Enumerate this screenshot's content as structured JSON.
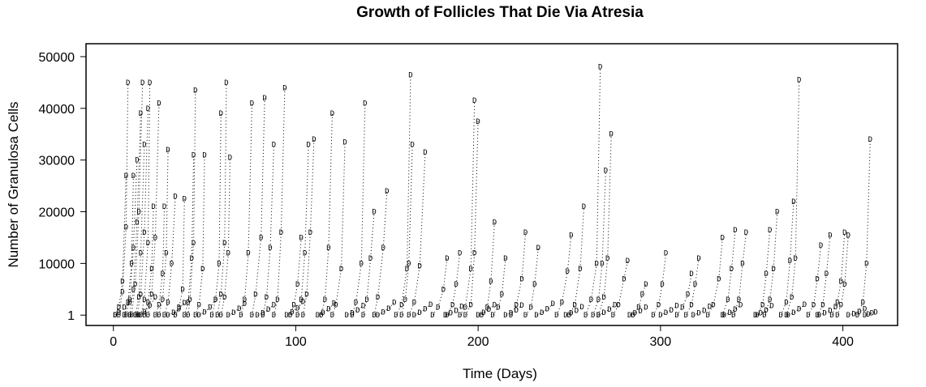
{
  "chart_data": {
    "type": "line",
    "title": "Growth of Follicles That Die Via Atresia",
    "xlabel": "Time (Days)",
    "ylabel": "Number of Granulosa Cells",
    "xlim": [
      -15,
      430
    ],
    "ylim": [
      -2000,
      52500
    ],
    "x_ticks": [
      0,
      100,
      200,
      300,
      400
    ],
    "y_ticks": [
      1,
      10000,
      20000,
      30000,
      40000,
      50000
    ],
    "y_tick_labels": [
      "1",
      "10000",
      "20000",
      "30000",
      "40000",
      "50000"
    ],
    "marker": "D",
    "grid": false,
    "legend": "none",
    "series": [
      {
        "x": [
          1,
          3,
          5,
          7
        ],
        "values": [
          1,
          1500,
          6500,
          27000
        ]
      },
      {
        "x": [
          3,
          5,
          7,
          8
        ],
        "values": [
          1,
          4500,
          17000,
          45000
        ]
      },
      {
        "x": [
          6,
          8,
          10,
          11
        ],
        "values": [
          1,
          2500,
          10000,
          27000
        ]
      },
      {
        "x": [
          7,
          9,
          11,
          13
        ],
        "values": [
          1,
          3000,
          13000,
          30000
        ]
      },
      {
        "x": [
          9,
          11,
          13,
          15
        ],
        "values": [
          1,
          5000,
          18000,
          39000
        ]
      },
      {
        "x": [
          10,
          12,
          14,
          16
        ],
        "values": [
          1,
          6000,
          20000,
          45000
        ]
      },
      {
        "x": [
          12,
          14,
          15,
          17
        ],
        "values": [
          1,
          3500,
          12000,
          33000
        ]
      },
      {
        "x": [
          13,
          15,
          17,
          19
        ],
        "values": [
          1,
          4000,
          16000,
          40000
        ]
      },
      {
        "x": [
          15,
          17,
          19,
          20
        ],
        "values": [
          1,
          3000,
          14000,
          45000
        ]
      },
      {
        "x": [
          17,
          19,
          21,
          22
        ],
        "values": [
          1,
          2500,
          9000,
          21000
        ]
      },
      {
        "x": [
          19,
          21,
          23,
          25
        ],
        "values": [
          1,
          4000,
          15000,
          41000
        ]
      },
      {
        "x": [
          23,
          25,
          27,
          28
        ],
        "values": [
          1,
          2000,
          8000,
          21000
        ]
      },
      {
        "x": [
          25,
          27,
          29,
          30
        ],
        "values": [
          1,
          3000,
          12000,
          32000
        ]
      },
      {
        "x": [
          28,
          30,
          32,
          34
        ],
        "values": [
          1,
          2500,
          10000,
          23000
        ]
      },
      {
        "x": [
          34,
          36,
          38,
          39
        ],
        "values": [
          1,
          1500,
          5000,
          22500
        ]
      },
      {
        "x": [
          39,
          41,
          43,
          44
        ],
        "values": [
          1,
          2500,
          11000,
          31000
        ]
      },
      {
        "x": [
          41,
          42,
          44,
          45
        ],
        "values": [
          1,
          3000,
          14000,
          43500
        ]
      },
      {
        "x": [
          45,
          47,
          49,
          50
        ],
        "values": [
          1,
          2000,
          9000,
          31000
        ]
      },
      {
        "x": [
          54,
          56,
          58,
          59
        ],
        "values": [
          1,
          3000,
          10000,
          39000
        ]
      },
      {
        "x": [
          57,
          59,
          61,
          62
        ],
        "values": [
          1,
          4000,
          14000,
          45000
        ]
      },
      {
        "x": [
          59,
          61,
          63,
          64
        ],
        "values": [
          1,
          3500,
          12000,
          30500
        ]
      },
      {
        "x": [
          70,
          72,
          74,
          76
        ],
        "values": [
          1,
          3000,
          12000,
          41000
        ]
      },
      {
        "x": [
          76,
          78,
          81,
          83
        ],
        "values": [
          1,
          4000,
          15000,
          42000
        ]
      },
      {
        "x": [
          82,
          84,
          86,
          88
        ],
        "values": [
          1,
          3500,
          13000,
          33000
        ]
      },
      {
        "x": [
          88,
          90,
          92,
          94
        ],
        "values": [
          1,
          3000,
          16000,
          44000
        ]
      },
      {
        "x": [
          97,
          99,
          101,
          103
        ],
        "values": [
          1,
          2000,
          6000,
          15000
        ]
      },
      {
        "x": [
          101,
          103,
          105,
          107
        ],
        "values": [
          1,
          3000,
          12000,
          33000
        ]
      },
      {
        "x": [
          104,
          106,
          108,
          110
        ],
        "values": [
          1,
          4000,
          16000,
          34000
        ]
      },
      {
        "x": [
          114,
          116,
          118,
          120
        ],
        "values": [
          1,
          3000,
          13000,
          39000
        ]
      },
      {
        "x": [
          120,
          122,
          125,
          127
        ],
        "values": [
          1,
          2000,
          9000,
          33500
        ]
      },
      {
        "x": [
          131,
          133,
          136,
          138
        ],
        "values": [
          1,
          2500,
          10000,
          41000
        ]
      },
      {
        "x": [
          137,
          139,
          141,
          143
        ],
        "values": [
          1,
          3000,
          11000,
          20000
        ]
      },
      {
        "x": [
          143,
          145,
          148,
          150
        ],
        "values": [
          1,
          3500,
          13000,
          24000
        ]
      },
      {
        "x": [
          155,
          158,
          161,
          163
        ],
        "values": [
          1,
          2000,
          9000,
          46500
        ]
      },
      {
        "x": [
          158,
          160,
          162,
          164
        ],
        "values": [
          1,
          3000,
          10000,
          33000
        ]
      },
      {
        "x": [
          162,
          165,
          168,
          171
        ],
        "values": [
          1,
          2500,
          9500,
          31500
        ]
      },
      {
        "x": [
          175,
          178,
          181,
          183
        ],
        "values": [
          1,
          1500,
          5000,
          11000
        ]
      },
      {
        "x": [
          183,
          186,
          188,
          190
        ],
        "values": [
          1,
          2000,
          6000,
          12000
        ]
      },
      {
        "x": [
          190,
          193,
          196,
          198
        ],
        "values": [
          1,
          1500,
          9000,
          41500
        ]
      },
      {
        "x": [
          193,
          196,
          198,
          200
        ],
        "values": [
          1,
          2000,
          12000,
          37500
        ]
      },
      {
        "x": [
          202,
          205,
          207,
          209
        ],
        "values": [
          1,
          1500,
          6500,
          18000
        ]
      },
      {
        "x": [
          208,
          211,
          213,
          215
        ],
        "values": [
          1,
          1500,
          4000,
          11000
        ]
      },
      {
        "x": [
          218,
          221,
          224,
          226
        ],
        "values": [
          1,
          2000,
          7000,
          16000
        ]
      },
      {
        "x": [
          226,
          229,
          231,
          233
        ],
        "values": [
          1,
          1500,
          6000,
          13000
        ]
      },
      {
        "x": [
          243,
          246,
          249,
          251
        ],
        "values": [
          1,
          2500,
          8500,
          15500
        ]
      },
      {
        "x": [
          250,
          253,
          256,
          258
        ],
        "values": [
          1,
          2000,
          9000,
          21000
        ]
      },
      {
        "x": [
          259,
          262,
          265,
          267
        ],
        "values": [
          1,
          3000,
          10000,
          48000
        ]
      },
      {
        "x": [
          263,
          266,
          268,
          270
        ],
        "values": [
          1,
          3000,
          10000,
          28000
        ]
      },
      {
        "x": [
          266,
          269,
          271,
          273
        ],
        "values": [
          1,
          3500,
          11000,
          35000
        ]
      },
      {
        "x": [
          274,
          277,
          280,
          282
        ],
        "values": [
          1,
          2000,
          7000,
          10500
        ]
      },
      {
        "x": [
          285,
          288,
          290,
          292
        ],
        "values": [
          1,
          1500,
          4000,
          6000
        ]
      },
      {
        "x": [
          296,
          299,
          301,
          303
        ],
        "values": [
          1,
          2000,
          6000,
          12000
        ]
      },
      {
        "x": [
          309,
          312,
          315,
          317
        ],
        "values": [
          1,
          1500,
          4000,
          8000
        ]
      },
      {
        "x": [
          314,
          317,
          319,
          321
        ],
        "values": [
          1,
          2000,
          6000,
          11000
        ]
      },
      {
        "x": [
          326,
          329,
          332,
          334
        ],
        "values": [
          1,
          2000,
          7000,
          15000
        ]
      },
      {
        "x": [
          334,
          337,
          339,
          341
        ],
        "values": [
          1,
          3000,
          9000,
          16500
        ]
      },
      {
        "x": [
          340,
          343,
          345,
          347
        ],
        "values": [
          1,
          3000,
          10000,
          16000
        ]
      },
      {
        "x": [
          353,
          356,
          358,
          360
        ],
        "values": [
          1,
          2000,
          8000,
          16500
        ]
      },
      {
        "x": [
          357,
          360,
          362,
          364
        ],
        "values": [
          1,
          3000,
          9000,
          20000
        ]
      },
      {
        "x": [
          366,
          369,
          371,
          373
        ],
        "values": [
          1,
          2500,
          10500,
          22000
        ]
      },
      {
        "x": [
          369,
          372,
          374,
          376
        ],
        "values": [
          1,
          3500,
          11000,
          45500
        ]
      },
      {
        "x": [
          381,
          384,
          386,
          388
        ],
        "values": [
          1,
          2000,
          7000,
          13500
        ]
      },
      {
        "x": [
          386,
          389,
          391,
          393
        ],
        "values": [
          1,
          2000,
          8000,
          15500
        ]
      },
      {
        "x": [
          394,
          397,
          399,
          401
        ],
        "values": [
          1,
          2500,
          6500,
          16000
        ]
      },
      {
        "x": [
          397,
          399,
          401,
          403
        ],
        "values": [
          1,
          2000,
          6000,
          15500
        ]
      },
      {
        "x": [
          408,
          411,
          413,
          415
        ],
        "values": [
          1,
          2500,
          10000,
          34000
        ]
      },
      {
        "x": [
          1,
          3,
          6,
          9
        ],
        "values": [
          1,
          500,
          1500,
          2500
        ]
      },
      {
        "x": [
          14,
          17,
          20,
          23
        ],
        "values": [
          1,
          700,
          1800,
          3500
        ]
      },
      {
        "x": [
          30,
          33,
          36,
          39
        ],
        "values": [
          1,
          500,
          1200,
          2400
        ]
      },
      {
        "x": [
          47,
          50,
          53,
          56
        ],
        "values": [
          1,
          600,
          1500,
          3000
        ]
      },
      {
        "x": [
          63,
          66,
          69,
          72
        ],
        "values": [
          1,
          500,
          1300,
          2200
        ]
      },
      {
        "x": [
          79,
          82,
          85,
          88
        ],
        "values": [
          1,
          400,
          1100,
          2000
        ]
      },
      {
        "x": [
          95,
          98,
          101,
          104
        ],
        "values": [
          1,
          600,
          1400,
          2600
        ]
      },
      {
        "x": [
          112,
          115,
          118,
          121
        ],
        "values": [
          1,
          500,
          1200,
          2300
        ]
      },
      {
        "x": [
          128,
          131,
          134,
          137
        ],
        "values": [
          1,
          400,
          1000,
          1800
        ]
      },
      {
        "x": [
          145,
          148,
          151,
          154
        ],
        "values": [
          1,
          600,
          1300,
          2500
        ]
      },
      {
        "x": [
          165,
          168,
          171,
          174
        ],
        "values": [
          1,
          500,
          1200,
          2100
        ]
      },
      {
        "x": [
          182,
          185,
          188,
          191
        ],
        "values": [
          1,
          400,
          900,
          1700
        ]
      },
      {
        "x": [
          200,
          203,
          206,
          209
        ],
        "values": [
          1,
          500,
          1100,
          2000
        ]
      },
      {
        "x": [
          215,
          218,
          221,
          224
        ],
        "values": [
          1,
          400,
          1000,
          1900
        ]
      },
      {
        "x": [
          232,
          235,
          238,
          241
        ],
        "values": [
          1,
          500,
          1200,
          2200
        ]
      },
      {
        "x": [
          248,
          251,
          254,
          257
        ],
        "values": [
          1,
          400,
          900,
          1600
        ]
      },
      {
        "x": [
          266,
          269,
          272,
          275
        ],
        "values": [
          1,
          500,
          1100,
          2000
        ]
      },
      {
        "x": [
          283,
          286,
          289,
          292
        ],
        "values": [
          1,
          400,
          800,
          1500
        ]
      },
      {
        "x": [
          300,
          303,
          306,
          309
        ],
        "values": [
          1,
          500,
          1000,
          1800
        ]
      },
      {
        "x": [
          318,
          321,
          324,
          327
        ],
        "values": [
          1,
          400,
          900,
          1700
        ]
      },
      {
        "x": [
          335,
          338,
          341,
          344
        ],
        "values": [
          1,
          500,
          1100,
          2000
        ]
      },
      {
        "x": [
          352,
          355,
          358,
          361
        ],
        "values": [
          1,
          400,
          1000,
          1800
        ]
      },
      {
        "x": [
          370,
          373,
          376,
          379
        ],
        "values": [
          1,
          500,
          1200,
          2100
        ]
      },
      {
        "x": [
          387,
          390,
          393,
          396
        ],
        "values": [
          1,
          400,
          900,
          1600
        ]
      },
      {
        "x": [
          403,
          406,
          409,
          412
        ],
        "values": [
          1,
          300,
          700,
          1200
        ]
      },
      {
        "x": [
          412,
          414,
          416,
          418
        ],
        "values": [
          1,
          200,
          400,
          600
        ]
      }
    ]
  }
}
